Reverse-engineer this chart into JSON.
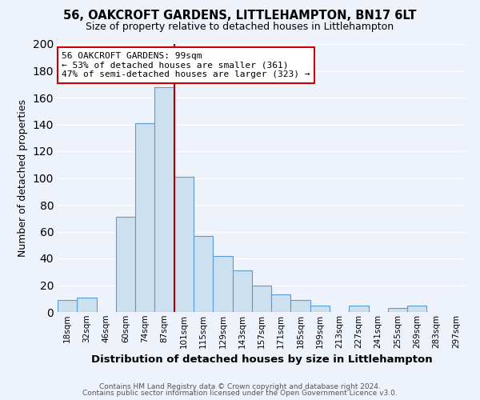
{
  "title": "56, OAKCROFT GARDENS, LITTLEHAMPTON, BN17 6LT",
  "subtitle": "Size of property relative to detached houses in Littlehampton",
  "xlabel": "Distribution of detached houses by size in Littlehampton",
  "ylabel": "Number of detached properties",
  "bin_labels": [
    "18sqm",
    "32sqm",
    "46sqm",
    "60sqm",
    "74sqm",
    "87sqm",
    "101sqm",
    "115sqm",
    "129sqm",
    "143sqm",
    "157sqm",
    "171sqm",
    "185sqm",
    "199sqm",
    "213sqm",
    "227sqm",
    "241sqm",
    "255sqm",
    "269sqm",
    "283sqm",
    "297sqm"
  ],
  "bar_heights": [
    9,
    11,
    0,
    71,
    141,
    168,
    101,
    57,
    42,
    31,
    20,
    13,
    9,
    5,
    0,
    5,
    0,
    3,
    5,
    0,
    0
  ],
  "bar_color": "#cce0f0",
  "bar_edge_color": "#5b9bd5",
  "property_line_color": "#aa0000",
  "annotation_line1": "56 OAKCROFT GARDENS: 99sqm",
  "annotation_line2": "← 53% of detached houses are smaller (361)",
  "annotation_line3": "47% of semi-detached houses are larger (323) →",
  "annotation_box_color": "#ffffff",
  "annotation_box_edge": "#cc0000",
  "ylim": [
    0,
    200
  ],
  "yticks": [
    0,
    20,
    40,
    60,
    80,
    100,
    120,
    140,
    160,
    180,
    200
  ],
  "footer1": "Contains HM Land Registry data © Crown copyright and database right 2024.",
  "footer2": "Contains public sector information licensed under the Open Government Licence v3.0.",
  "bg_color": "#eef2fa",
  "plot_bg_color": "#eef2fa",
  "grid_color": "#ffffff"
}
